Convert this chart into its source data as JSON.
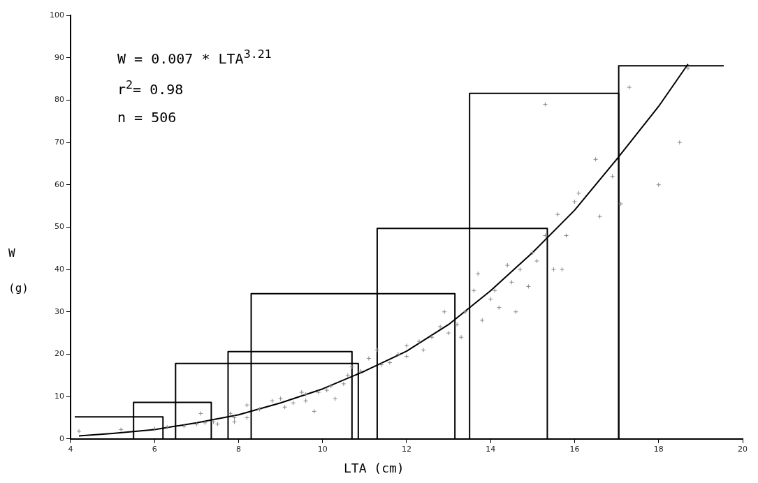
{
  "chart_data": {
    "type": "scatter",
    "xlabel": "LTA (cm)",
    "ylabel": "W (g)",
    "annotations": [
      "W = 0.007 * LTA$^{3.21}$",
      "r$^{2}$= 0.98",
      "n = 506"
    ],
    "xlim": [
      4,
      20
    ],
    "xticks": [
      4,
      6,
      8,
      10,
      12,
      14,
      16,
      18,
      20
    ],
    "ylim": [
      0,
      100
    ],
    "yticks": [
      0,
      10,
      20,
      30,
      40,
      50,
      60,
      70,
      80,
      90,
      100
    ],
    "grid": false,
    "legend": false,
    "series": [
      {
        "color": "#8a8a8a",
        "marker": "cross",
        "x": [
          4.2,
          5.2,
          6,
          6.3,
          6.7,
          7,
          7.1,
          7.2,
          7.4,
          7.5,
          7.8,
          7.9,
          7.9,
          8.2,
          8.2,
          8.5,
          8.8,
          9,
          9.1,
          9.3,
          9.5,
          9.6,
          9.6,
          9.8,
          9.9,
          10.1,
          10.2,
          10.3,
          10.5,
          10.6,
          10.7,
          10.9,
          11.1,
          11.3,
          11.4,
          11.6,
          11.8,
          12,
          12,
          12.3,
          12.4,
          12.6,
          12.8,
          12.9,
          13,
          13.2,
          13.3,
          13.4,
          13.6,
          13.7,
          13.8,
          14,
          14.1,
          14.2,
          14.4,
          14.5,
          14.6,
          14.7,
          14.9,
          15,
          15.1,
          15.3,
          15.3,
          15.5,
          15.7,
          15.6,
          15.8,
          16,
          16.1,
          16.5,
          16.6,
          16.9,
          17.1,
          17.3,
          18,
          18.5,
          18.7
        ],
        "values": [
          1.8,
          2.2,
          2.4,
          2.8,
          3,
          3.5,
          6,
          3.8,
          4,
          3.5,
          6,
          5,
          4,
          5,
          8,
          7,
          9,
          9.5,
          7.5,
          8.5,
          11,
          10.5,
          9,
          6.5,
          11,
          11.5,
          12.5,
          9.5,
          13,
          15,
          17,
          16,
          19,
          21,
          17.5,
          18,
          20,
          22,
          19.5,
          23,
          21,
          24,
          26.5,
          30,
          25,
          27,
          24,
          30,
          35,
          39,
          28,
          33,
          35,
          31,
          41,
          37,
          30,
          40,
          36,
          44,
          42,
          48,
          79,
          40,
          40,
          53,
          48,
          56,
          58,
          66,
          52.5,
          62,
          55.5,
          83,
          60,
          70,
          87.5
        ]
      },
      {
        "type": "line",
        "color": "#000000",
        "marker": "none",
        "x": [
          4.2,
          5,
          6,
          7,
          8,
          9,
          10,
          11,
          12,
          13,
          14,
          15,
          16,
          17,
          18,
          18.7
        ],
        "values": [
          0.7,
          1.3,
          2.2,
          3.8,
          5.7,
          8.5,
          11.8,
          16,
          20.7,
          27,
          35,
          44,
          54,
          66,
          78.5,
          88.5
        ]
      },
      {
        "type": "line",
        "color": "#000000",
        "marker": "none",
        "x": [
          4.1,
          6.2,
          6.2
        ],
        "values": [
          5.2,
          5.2,
          0
        ]
      },
      {
        "type": "line",
        "color": "#000000",
        "marker": "none",
        "x": [
          5.5,
          5.5,
          7.35,
          7.35
        ],
        "values": [
          0,
          8.6,
          8.6,
          0
        ]
      },
      {
        "type": "line",
        "color": "#000000",
        "marker": "none",
        "x": [
          6.5,
          6.5,
          10.85,
          10.85
        ],
        "values": [
          0,
          17.8,
          17.8,
          0
        ]
      },
      {
        "type": "line",
        "color": "#000000",
        "marker": "none",
        "x": [
          7.75,
          7.75,
          10.7,
          10.7
        ],
        "values": [
          0,
          20.6,
          20.6,
          0
        ]
      },
      {
        "type": "line",
        "color": "#000000",
        "marker": "none",
        "x": [
          8.3,
          8.3,
          13.15,
          13.15
        ],
        "values": [
          0,
          34.3,
          34.3,
          0
        ]
      },
      {
        "type": "line",
        "color": "#000000",
        "marker": "none",
        "x": [
          11.3,
          11.3,
          15.35,
          15.35
        ],
        "values": [
          0,
          49.7,
          49.7,
          0
        ]
      },
      {
        "type": "line",
        "color": "#000000",
        "marker": "none",
        "x": [
          13.5,
          13.5,
          17.05,
          17.05
        ],
        "values": [
          0,
          81.6,
          81.6,
          0
        ]
      },
      {
        "type": "line",
        "color": "#000000",
        "marker": "none",
        "x": [
          17.05,
          17.05,
          19.55
        ],
        "values": [
          0,
          88.1,
          88.1
        ]
      }
    ]
  }
}
